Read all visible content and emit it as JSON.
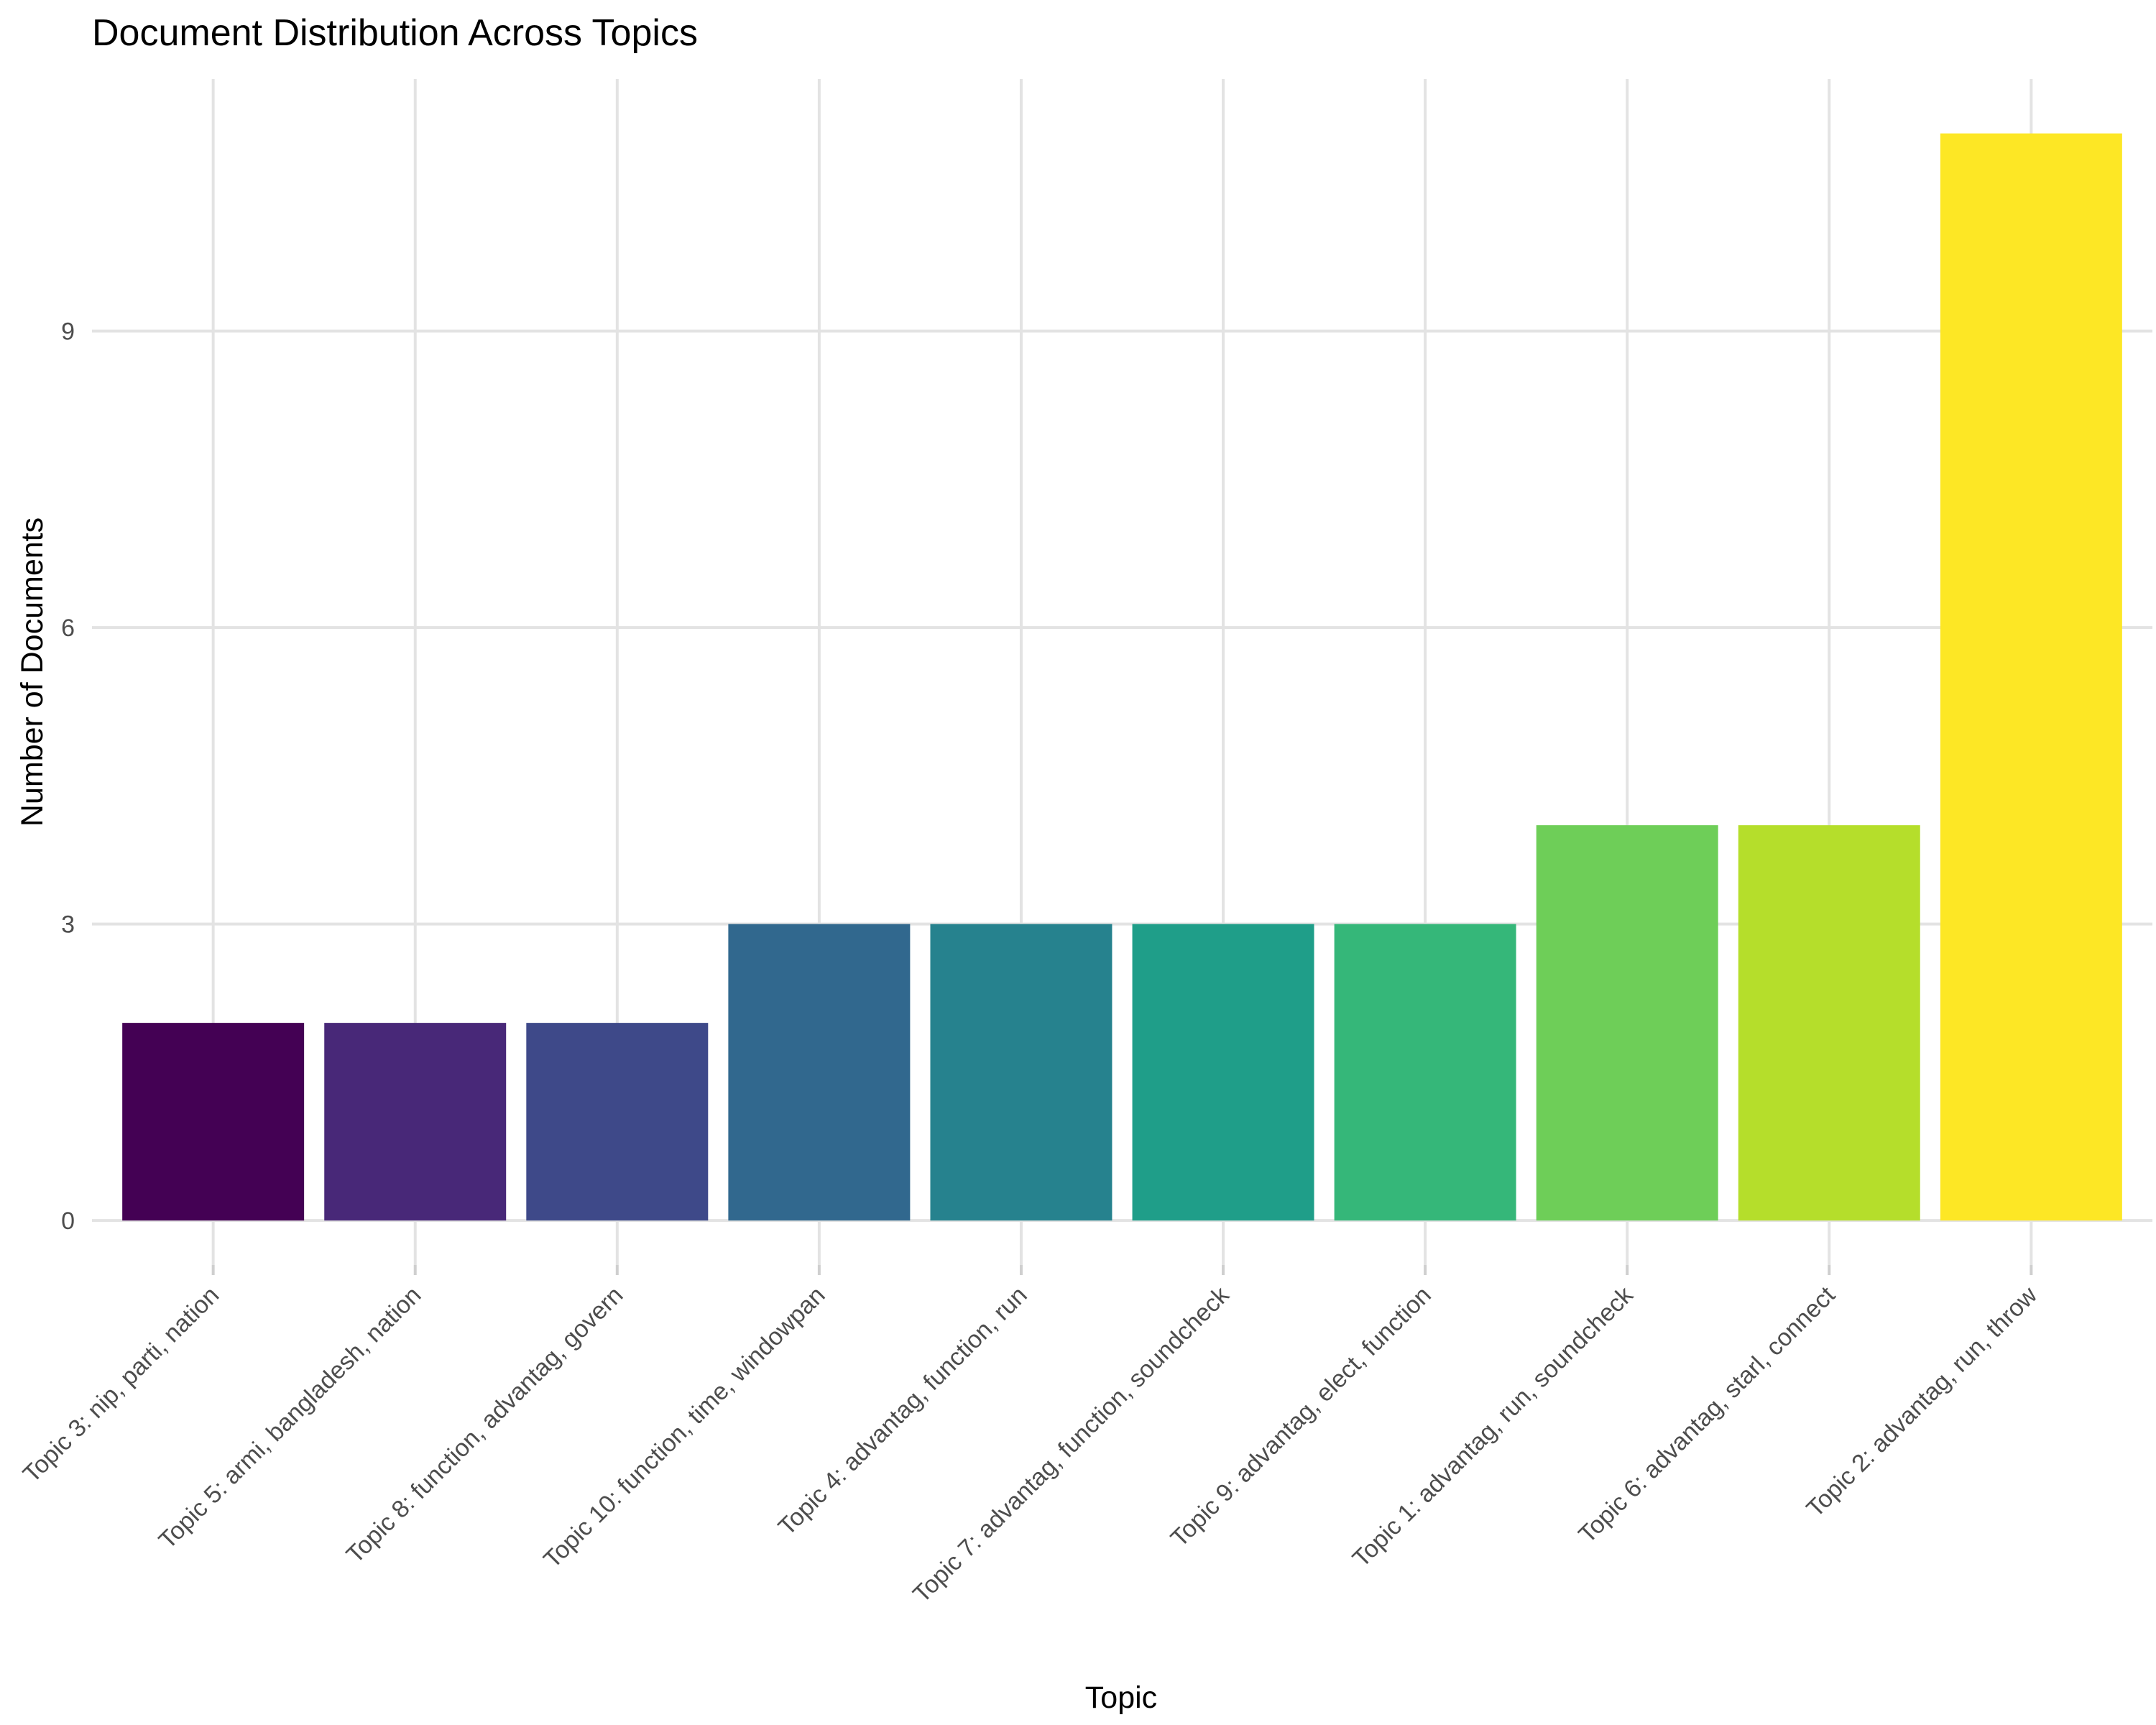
{
  "chart_data": {
    "type": "bar",
    "title": "Document Distribution Across Topics",
    "xlabel": "Topic",
    "ylabel": "Number of Documents",
    "categories": [
      "Topic 3: nip, parti, nation",
      "Topic 5: armi, bangladesh, nation",
      "Topic 8: function, advantag, govern",
      "Topic 10: function, time, windowpan",
      "Topic 4: advantag, function, run",
      "Topic 7: advantag, function, soundcheck",
      "Topic 9: advantag, elect, function",
      "Topic 1: advantag, run, soundcheck",
      "Topic 6: advantag, starl, connect",
      "Topic 2: advantag, run, throw"
    ],
    "values": [
      2,
      2,
      2,
      3,
      3,
      3,
      3,
      4,
      4,
      11
    ],
    "colors": [
      "#440154",
      "#482878",
      "#3e4989",
      "#31688e",
      "#26828e",
      "#1f9e89",
      "#35b779",
      "#6ece58",
      "#b5de2b",
      "#fde725"
    ],
    "yticks": [
      0,
      3,
      6,
      9
    ],
    "ylim": [
      -0.45,
      11.55
    ],
    "grid": true,
    "legend": "none"
  }
}
